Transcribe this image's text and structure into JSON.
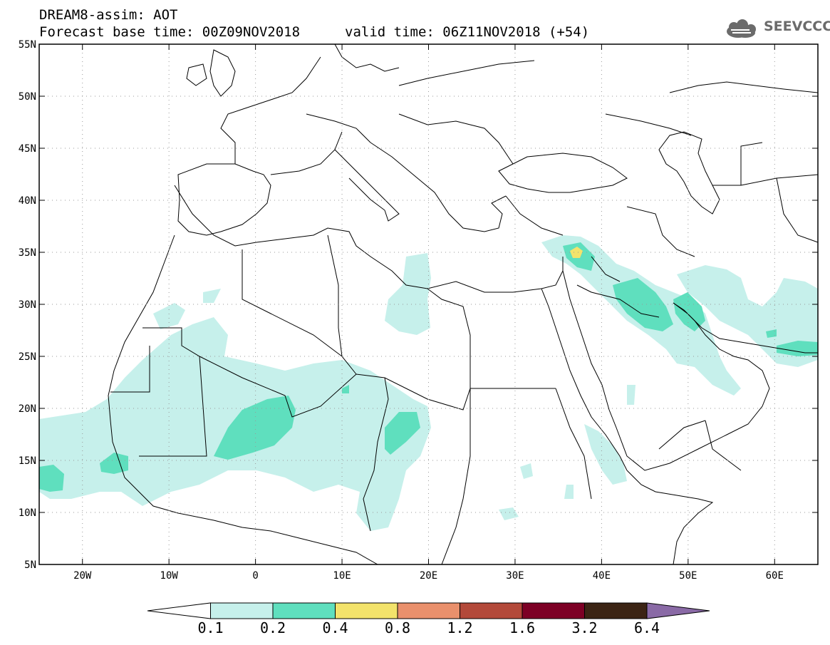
{
  "header": {
    "model_line": "DREAM8-assim: AOT",
    "base_time_line": "Forecast base time: 00Z09NOV2018",
    "valid_time_line": "valid time: 06Z11NOV2018 (+54)",
    "logo_text": "SEEVCCC",
    "logo_icon": "cloud-icon"
  },
  "map": {
    "lon_range": [
      -25,
      65
    ],
    "lat_range": [
      5,
      55
    ],
    "lat_labels": [
      "5N",
      "10N",
      "15N",
      "20N",
      "25N",
      "30N",
      "35N",
      "40N",
      "45N",
      "50N",
      "55N"
    ],
    "lat_values": [
      5,
      10,
      15,
      20,
      25,
      30,
      35,
      40,
      45,
      50,
      55
    ],
    "lon_labels": [
      "20W",
      "10W",
      "0",
      "10E",
      "20E",
      "30E",
      "40E",
      "50E",
      "60E"
    ],
    "lon_values": [
      -20,
      -10,
      0,
      10,
      20,
      30,
      40,
      50,
      60
    ],
    "gridlines": "dotted",
    "colors": {
      "0.1-0.2": "#c6f0eb",
      "0.2-0.4": "#5fdfbe",
      "0.4-0.8": "#f3e36b"
    }
  },
  "colorbar": {
    "levels": [
      "0.1",
      "0.2",
      "0.4",
      "0.8",
      "1.2",
      "1.6",
      "3.2",
      "6.4"
    ],
    "colors": [
      "#ffffff",
      "#c6f0eb",
      "#5fdfbe",
      "#f3e36b",
      "#e9906c",
      "#b3493a",
      "#7d0025",
      "#3c2414",
      "#8a6aa6"
    ]
  }
}
